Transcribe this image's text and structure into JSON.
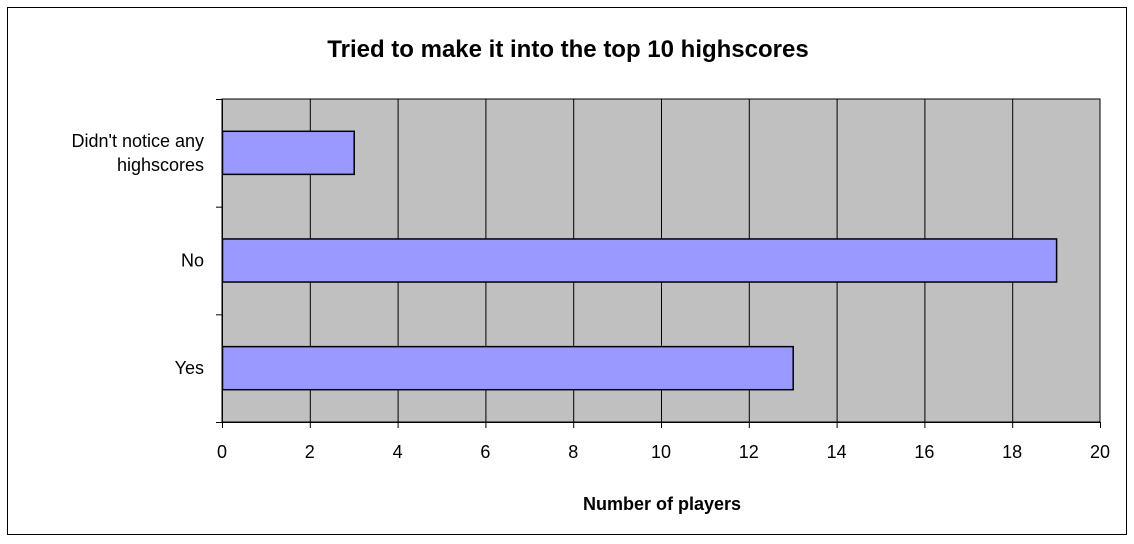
{
  "chart_data": {
    "type": "bar",
    "orientation": "horizontal",
    "title": "Tried to make it into the top 10 highscores",
    "xlabel": "Number of players",
    "ylabel": "",
    "categories": [
      "Didn't notice any highscores",
      "No",
      "Yes"
    ],
    "category_lines": [
      [
        "Didn't notice any",
        "highscores"
      ],
      [
        "No"
      ],
      [
        "Yes"
      ]
    ],
    "values": [
      3,
      19,
      13
    ],
    "xlim": [
      0,
      20
    ],
    "xticks": [
      0,
      2,
      4,
      6,
      8,
      10,
      12,
      14,
      16,
      18,
      20
    ],
    "grid": true,
    "legend": "none",
    "colors": {
      "bar_fill": "#9999ff",
      "bar_stroke": "#000000",
      "plot_background": "#c0c0c0",
      "gridline": "#000000"
    }
  }
}
